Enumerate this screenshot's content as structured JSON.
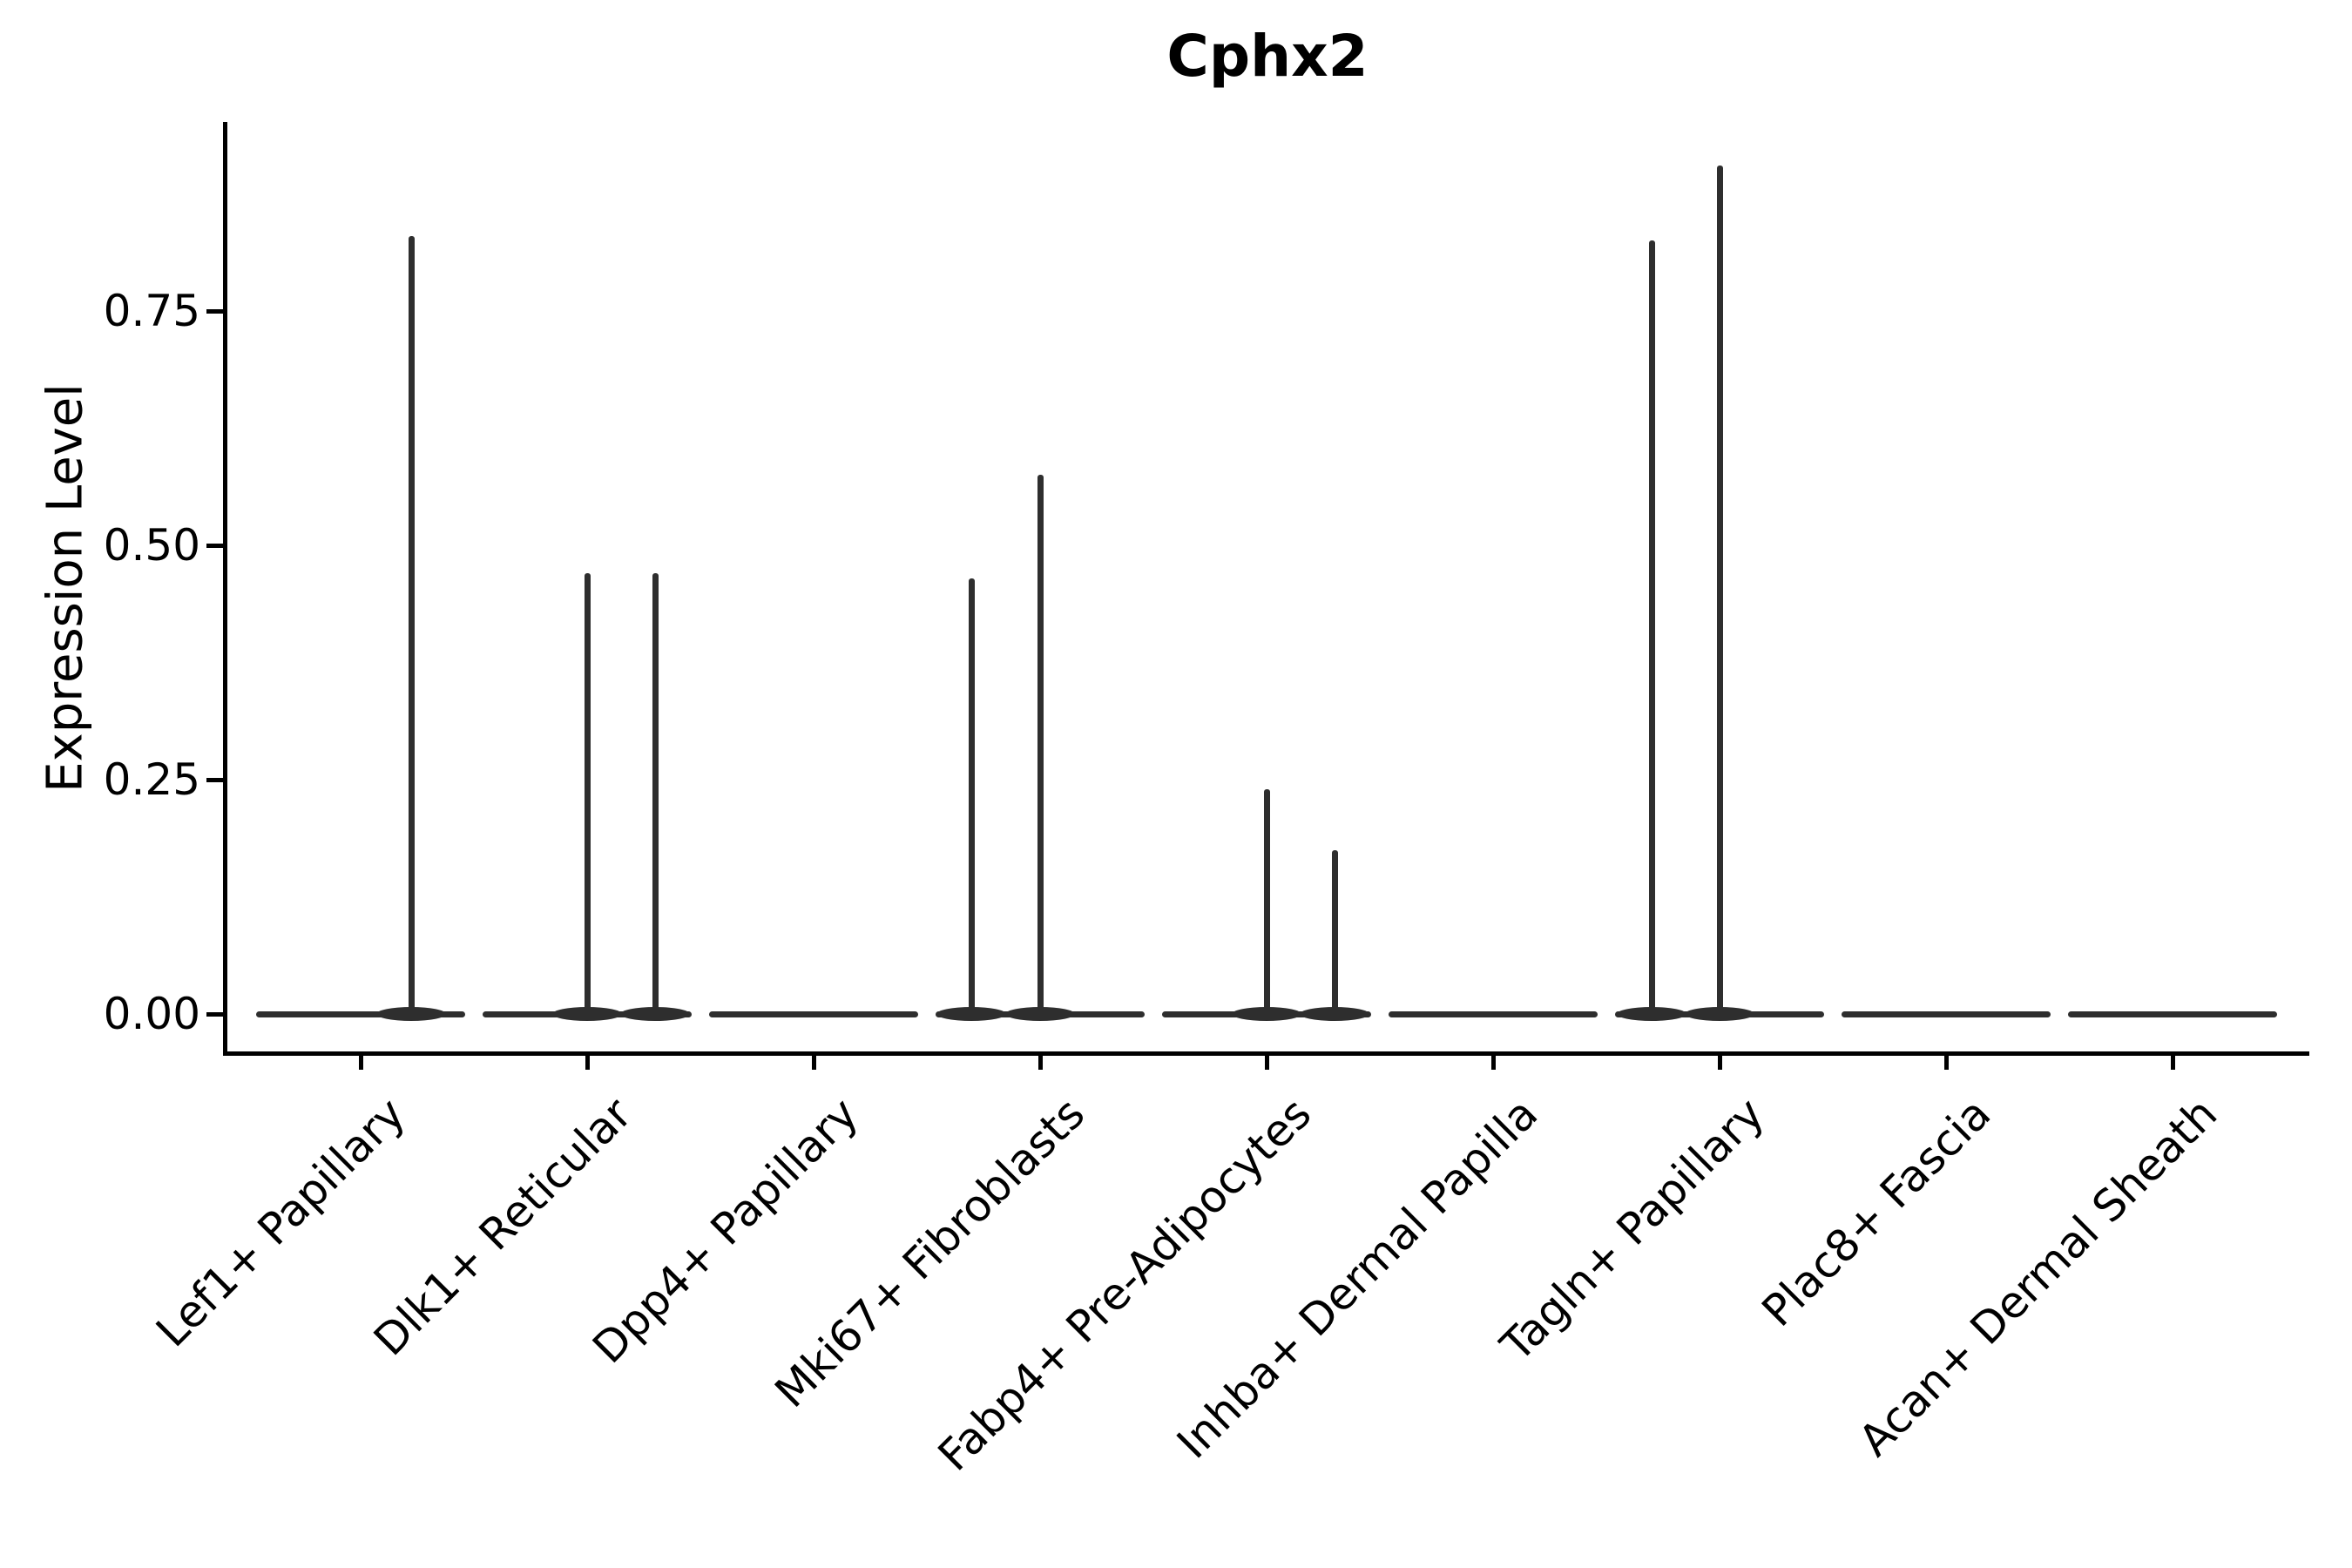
{
  "title": "Cphx2",
  "axes": {
    "ylabel": "Expression Level",
    "y_ticks": [
      {
        "label": "0.00",
        "value": 0.0
      },
      {
        "label": "0.25",
        "value": 0.25
      },
      {
        "label": "0.50",
        "value": 0.5
      },
      {
        "label": "0.75",
        "value": 0.75
      }
    ]
  },
  "colors": {
    "violin_line": "#2e2e2e",
    "axis": "#000000",
    "text": "#000000",
    "background": "#ffffff"
  },
  "chart_data": {
    "type": "violin",
    "title": "Cphx2",
    "xlabel": "",
    "ylabel": "Expression Level",
    "ylim": [
      -0.042,
      0.952
    ],
    "grid": false,
    "legend": "none",
    "categories": [
      "Lef1+ Papillary",
      "Dlk1+ Reticular",
      "Dpp4+ Papillary",
      "Mki67+ Fibroblasts",
      "Fabp4+ Pre-Adipocytes",
      "Inhba+ Dermal Papilla",
      "Tagln+ Papillary",
      "Plac8+ Fascia",
      "Acan+ Dermal Sheath"
    ],
    "description": "Violin plot of Cphx2 expression; all distributions collapsed at 0 with sparse high-expression spikes",
    "series": [
      {
        "category": "Lef1+ Papillary",
        "baseline_value": 0.0,
        "spikes": [
          {
            "dx": 58,
            "value": 0.83
          }
        ]
      },
      {
        "category": "Dlk1+ Reticular",
        "baseline_value": 0.0,
        "spikes": [
          {
            "dx": 0,
            "value": 0.47
          },
          {
            "dx": 78,
            "value": 0.47
          }
        ]
      },
      {
        "category": "Dpp4+ Papillary",
        "baseline_value": 0.0,
        "spikes": []
      },
      {
        "category": "Mki67+ Fibroblasts",
        "baseline_value": 0.0,
        "spikes": [
          {
            "dx": -79,
            "value": 0.465
          },
          {
            "dx": 0,
            "value": 0.575
          }
        ]
      },
      {
        "category": "Fabp4+ Pre-Adipocytes",
        "baseline_value": 0.0,
        "spikes": [
          {
            "dx": 0,
            "value": 0.24
          },
          {
            "dx": 78,
            "value": 0.175
          }
        ]
      },
      {
        "category": "Inhba+ Dermal Papilla",
        "baseline_value": 0.0,
        "spikes": []
      },
      {
        "category": "Tagln+ Papillary",
        "baseline_value": 0.0,
        "spikes": [
          {
            "dx": -78,
            "value": 0.825
          },
          {
            "dx": 0,
            "value": 0.905
          }
        ]
      },
      {
        "category": "Plac8+ Fascia",
        "baseline_value": 0.0,
        "spikes": []
      },
      {
        "category": "Acan+ Dermal Sheath",
        "baseline_value": 0.0,
        "spikes": []
      }
    ]
  }
}
